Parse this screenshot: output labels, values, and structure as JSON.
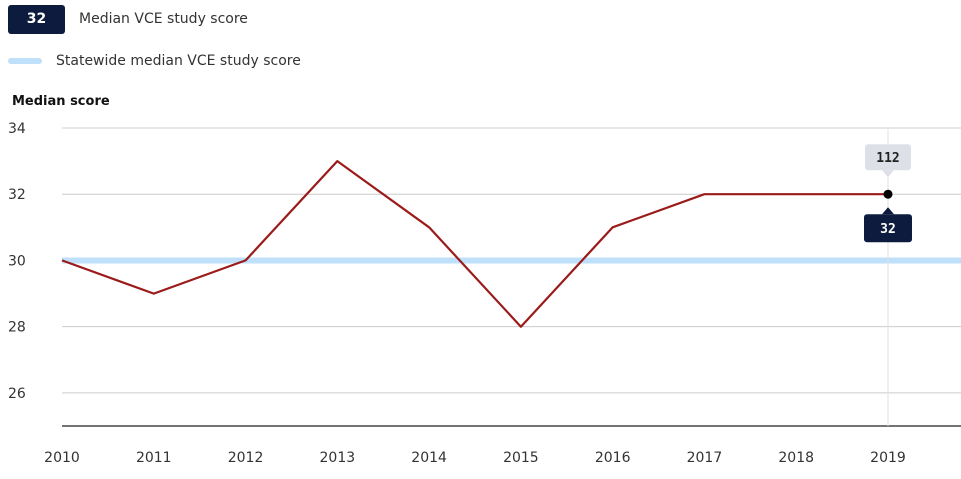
{
  "legend": {
    "badge_value": "32",
    "series_label": "Median VCE study score",
    "reference_label": "Statewide median VCE study score"
  },
  "colors": {
    "series_line": "#9b1b1b",
    "reference_line": "#bfe0fb",
    "badge_bg": "#0d1b3e",
    "tooltip_top_bg": "#dde1e7",
    "grid": "#cccccc",
    "axis": "#222222"
  },
  "chart_data": {
    "type": "line",
    "title": "",
    "xlabel": "",
    "ylabel": "Median score",
    "x": [
      "2010",
      "2011",
      "2012",
      "2013",
      "2014",
      "2015",
      "2016",
      "2017",
      "2018",
      "2019"
    ],
    "series": [
      {
        "name": "Median VCE study score",
        "values": [
          30,
          29,
          30,
          33,
          31,
          28,
          31,
          32,
          32,
          32
        ]
      }
    ],
    "reference_line": {
      "name": "Statewide median VCE study score",
      "value": 30
    },
    "yticks": [
      26,
      28,
      30,
      32,
      34
    ],
    "ylim": [
      25,
      34
    ],
    "grid": true,
    "legend": "top-left",
    "highlight": {
      "x": "2019",
      "value": "32",
      "extra_label": "112"
    }
  }
}
